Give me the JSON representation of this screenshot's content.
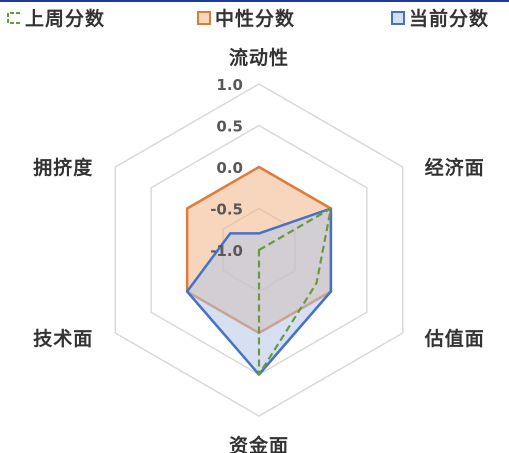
{
  "chart_data": {
    "type": "radar",
    "axes": [
      "流动性",
      "经济面",
      "估值面",
      "资金面",
      "技术面",
      "拥挤度"
    ],
    "rlim": [
      -1.0,
      1.0
    ],
    "ticks": [
      "1.0",
      "0.5",
      "0.0",
      "-0.5",
      "-1.0"
    ],
    "tick_values": [
      1.0,
      0.5,
      0.0,
      -0.5,
      -1.0
    ],
    "grid": true,
    "legend_position": "top",
    "series": [
      {
        "name": "上周分数",
        "style": "dashed",
        "fill": false,
        "color": "#6a9a3f",
        "values": [
          -1.0,
          0.0,
          -0.2,
          0.5,
          -1.0,
          -1.0
        ]
      },
      {
        "name": "中性分数",
        "style": "solid",
        "fill": true,
        "color": "#e07b39",
        "values": [
          0.0,
          0.0,
          0.0,
          0.0,
          0.0,
          0.0
        ]
      },
      {
        "name": "当前分数",
        "style": "solid",
        "fill": true,
        "color": "#4472c4",
        "values": [
          -0.8,
          0.0,
          0.0,
          0.5,
          0.0,
          -0.6
        ]
      }
    ]
  }
}
